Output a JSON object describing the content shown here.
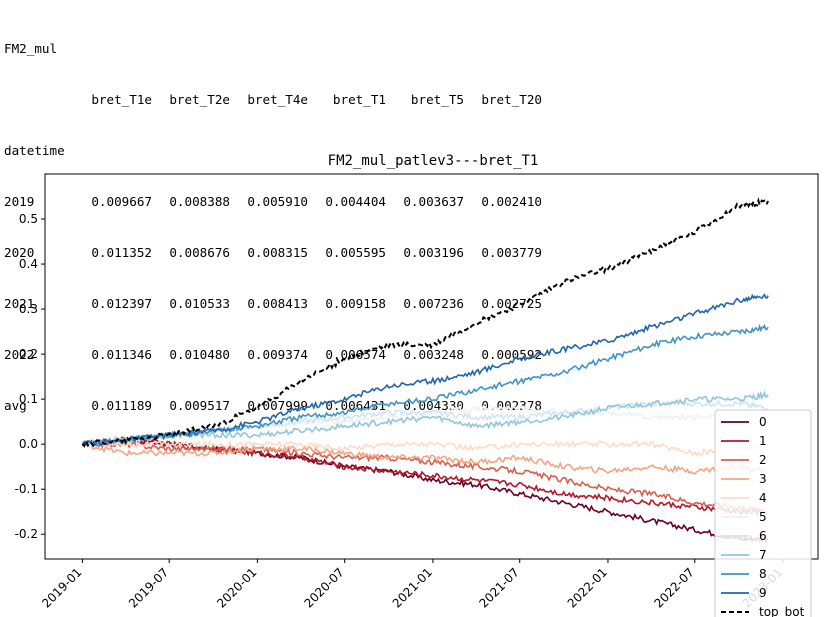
{
  "output": {
    "title": "FM2_mul",
    "index_name": "datetime",
    "columns": [
      "bret_T1e",
      "bret_T2e",
      "bret_T4e",
      "bret_T1",
      "bret_T5",
      "bret_T20"
    ],
    "rows": [
      {
        "label": "2019",
        "values": [
          "0.009667",
          "0.008388",
          "0.005910",
          "0.004404",
          "0.003637",
          "0.002410"
        ]
      },
      {
        "label": "2020",
        "values": [
          "0.011352",
          "0.008676",
          "0.008315",
          "0.005595",
          "0.003196",
          "0.003779"
        ]
      },
      {
        "label": "2021",
        "values": [
          "0.012397",
          "0.010533",
          "0.008413",
          "0.009158",
          "0.007236",
          "0.002725"
        ]
      },
      {
        "label": "2022",
        "values": [
          "0.011346",
          "0.010480",
          "0.009374",
          "0.006574",
          "0.003248",
          "0.000592"
        ]
      },
      {
        "label": "avg",
        "values": [
          "0.011189",
          "0.009517",
          "0.007999",
          "0.006431",
          "0.004330",
          "0.002378"
        ]
      }
    ]
  },
  "chart_data": {
    "type": "line",
    "title": "FM2_mul_patlev3---bret_T1",
    "x_ticks": [
      "2019-01",
      "2019-07",
      "2020-01",
      "2020-07",
      "2021-01",
      "2021-07",
      "2022-01",
      "2022-07",
      "2023-01"
    ],
    "x_range": [
      "2019-01-01",
      "2022-12-31"
    ],
    "y_ticks": [
      "-0.2",
      "-0.1",
      "0.0",
      "0.1",
      "0.2",
      "0.3",
      "0.4",
      "0.5"
    ],
    "ylim": [
      -0.255,
      0.6
    ],
    "grid": false,
    "legend_position": "right",
    "x": [
      "2019-01",
      "2019-04",
      "2019-07",
      "2019-10",
      "2020-01",
      "2020-04",
      "2020-07",
      "2020-10",
      "2021-01",
      "2021-04",
      "2021-07",
      "2021-10",
      "2022-01",
      "2022-04",
      "2022-07",
      "2022-10",
      "2022-12"
    ],
    "series": [
      {
        "name": "0",
        "color": "#67001f",
        "dash": false,
        "values": [
          0.0,
          0.01,
          0.0,
          -0.01,
          -0.02,
          -0.03,
          -0.05,
          -0.06,
          -0.08,
          -0.09,
          -0.11,
          -0.13,
          -0.15,
          -0.17,
          -0.19,
          -0.21,
          -0.21
        ]
      },
      {
        "name": "1",
        "color": "#b2182b",
        "dash": false,
        "values": [
          0.0,
          0.01,
          0.0,
          -0.01,
          -0.02,
          -0.03,
          -0.05,
          -0.06,
          -0.07,
          -0.08,
          -0.09,
          -0.11,
          -0.12,
          -0.13,
          -0.14,
          -0.15,
          -0.15
        ]
      },
      {
        "name": "2",
        "color": "#d6604d",
        "dash": false,
        "values": [
          0.0,
          0.0,
          -0.01,
          -0.01,
          -0.01,
          -0.02,
          -0.03,
          -0.03,
          -0.04,
          -0.05,
          -0.06,
          -0.08,
          -0.1,
          -0.11,
          -0.13,
          -0.14,
          -0.15
        ]
      },
      {
        "name": "3",
        "color": "#f4a582",
        "dash": false,
        "values": [
          0.0,
          -0.02,
          -0.02,
          -0.02,
          -0.01,
          -0.01,
          -0.02,
          -0.03,
          -0.03,
          -0.04,
          -0.03,
          -0.05,
          -0.06,
          -0.05,
          -0.06,
          -0.05,
          -0.06
        ]
      },
      {
        "name": "4",
        "color": "#fddbc7",
        "dash": false,
        "values": [
          0.0,
          0.0,
          0.0,
          0.0,
          0.0,
          0.0,
          -0.01,
          0.0,
          0.0,
          -0.01,
          0.0,
          0.0,
          0.0,
          0.0,
          -0.02,
          -0.01,
          0.0
        ]
      },
      {
        "name": "5",
        "color": "#f0f0f0",
        "dash": false,
        "values": [
          0.0,
          0.01,
          0.02,
          0.03,
          0.04,
          0.05,
          0.05,
          0.06,
          0.07,
          0.08,
          0.08,
          0.07,
          0.07,
          0.06,
          0.06,
          0.06,
          0.06
        ]
      },
      {
        "name": "6",
        "color": "#d1e5f0",
        "dash": false,
        "values": [
          0.0,
          0.01,
          0.02,
          0.03,
          0.04,
          0.05,
          0.06,
          0.07,
          0.07,
          0.06,
          0.06,
          0.07,
          0.08,
          0.09,
          0.09,
          0.09,
          0.08
        ]
      },
      {
        "name": "7",
        "color": "#92c5de",
        "dash": false,
        "values": [
          0.0,
          0.01,
          0.02,
          0.02,
          0.02,
          0.03,
          0.04,
          0.05,
          0.06,
          0.04,
          0.05,
          0.06,
          0.08,
          0.09,
          0.1,
          0.1,
          0.11
        ]
      },
      {
        "name": "8",
        "color": "#4393c3",
        "dash": false,
        "values": [
          0.0,
          0.01,
          0.02,
          0.03,
          0.04,
          0.06,
          0.07,
          0.09,
          0.1,
          0.12,
          0.14,
          0.16,
          0.19,
          0.22,
          0.24,
          0.25,
          0.26
        ]
      },
      {
        "name": "9",
        "color": "#2166ac",
        "dash": false,
        "values": [
          0.0,
          0.01,
          0.02,
          0.03,
          0.05,
          0.08,
          0.1,
          0.13,
          0.14,
          0.16,
          0.19,
          0.21,
          0.23,
          0.26,
          0.29,
          0.32,
          0.33
        ]
      },
      {
        "name": "top_bot",
        "color": "#000000",
        "dash": true,
        "values": [
          0.0,
          0.01,
          0.02,
          0.04,
          0.08,
          0.14,
          0.19,
          0.22,
          0.22,
          0.27,
          0.31,
          0.36,
          0.39,
          0.43,
          0.47,
          0.53,
          0.54
        ]
      }
    ]
  }
}
